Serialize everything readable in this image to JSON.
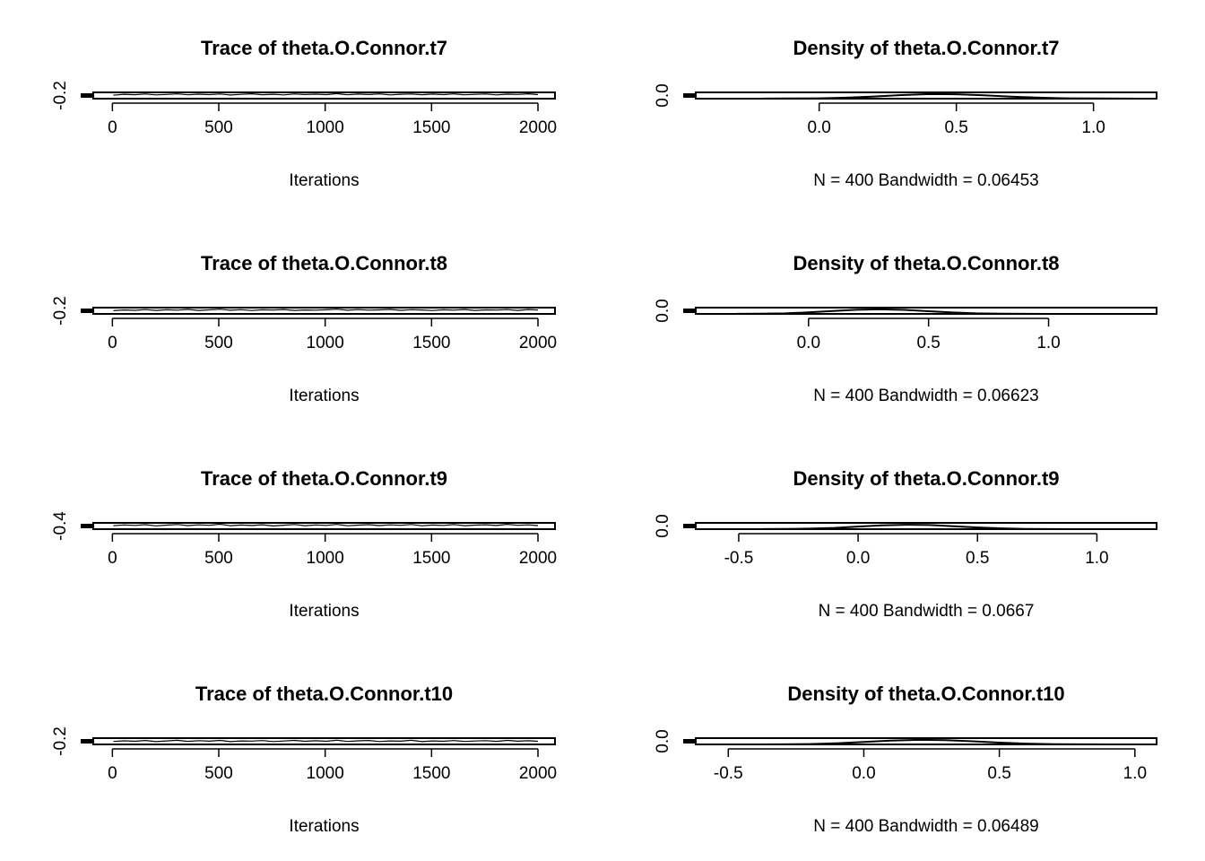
{
  "chart_data": [
    {
      "type": "line",
      "title": "Trace of theta.O.Connor.t7",
      "xlabel": "Iterations",
      "ylabel": "",
      "xlim": [
        -90,
        2080
      ],
      "ylim": [
        -0.6,
        1.0
      ],
      "x_ticks": [
        0,
        500,
        1000,
        1500,
        2000
      ],
      "x_tick_labels": [
        "0",
        "500",
        "1000",
        "1500",
        "2000"
      ],
      "y_ticks": [
        -0.2
      ],
      "y_tick_labels": [
        "-0.2"
      ],
      "series": [
        {
          "x": [
            5,
            55,
            105,
            155,
            205,
            255,
            305,
            355,
            405,
            455,
            505,
            555,
            605,
            655,
            705,
            755,
            805,
            855,
            905,
            955,
            1005,
            1055,
            1105,
            1155,
            1205,
            1255,
            1305,
            1355,
            1405,
            1455,
            1505,
            1555,
            1605,
            1655,
            1705,
            1755,
            1805,
            1855,
            1905,
            1955,
            2000
          ],
          "y": [
            0.3,
            0.52,
            0.41,
            0.6,
            0.35,
            0.48,
            0.62,
            0.38,
            0.55,
            0.44,
            0.58,
            0.33,
            0.5,
            0.64,
            0.4,
            0.53,
            0.37,
            0.6,
            0.46,
            0.55,
            0.42,
            0.68,
            0.39,
            0.57,
            0.45,
            0.61,
            0.36,
            0.52,
            0.6,
            0.4,
            0.56,
            0.43,
            0.62,
            0.38,
            0.5,
            0.59,
            0.35,
            0.54,
            0.47,
            0.63,
            0.42
          ]
        }
      ]
    },
    {
      "type": "line",
      "title": "Density of theta.O.Connor.t7",
      "xlabel": "N = 400   Bandwidth = 0.06453",
      "ylabel": "",
      "xlim": [
        -0.45,
        1.23
      ],
      "ylim": [
        0,
        2.2
      ],
      "x_ticks": [
        0.0,
        0.5,
        1.0
      ],
      "x_tick_labels": [
        "0.0",
        "0.5",
        "1.0"
      ],
      "y_ticks": [
        0.0
      ],
      "y_tick_labels": [
        "0.0"
      ],
      "series": [
        {
          "x": [
            -0.2,
            -0.1,
            0.0,
            0.1,
            0.2,
            0.3,
            0.4,
            0.5,
            0.6,
            0.7,
            0.8,
            0.9,
            1.0,
            1.1,
            1.2
          ],
          "y": [
            0.02,
            0.05,
            0.12,
            0.35,
            0.75,
            1.25,
            1.6,
            1.55,
            1.2,
            0.72,
            0.36,
            0.14,
            0.05,
            0.02,
            0.01
          ]
        }
      ]
    },
    {
      "type": "line",
      "title": "Trace of theta.O.Connor.t8",
      "xlabel": "Iterations",
      "ylabel": "",
      "xlim": [
        -90,
        2080
      ],
      "ylim": [
        -0.6,
        1.0
      ],
      "x_ticks": [
        0,
        500,
        1000,
        1500,
        2000
      ],
      "x_tick_labels": [
        "0",
        "500",
        "1000",
        "1500",
        "2000"
      ],
      "y_ticks": [
        -0.2
      ],
      "y_tick_labels": [
        "-0.2"
      ],
      "series": [
        {
          "x": [
            5,
            55,
            105,
            155,
            205,
            255,
            305,
            355,
            405,
            455,
            505,
            555,
            605,
            655,
            705,
            755,
            805,
            855,
            905,
            955,
            1005,
            1055,
            1105,
            1155,
            1205,
            1255,
            1305,
            1355,
            1405,
            1455,
            1505,
            1555,
            1605,
            1655,
            1705,
            1755,
            1805,
            1855,
            1905,
            1955,
            2000
          ],
          "y": [
            0.25,
            0.4,
            0.32,
            0.5,
            0.28,
            0.45,
            0.36,
            0.55,
            0.3,
            0.42,
            0.58,
            0.34,
            0.47,
            0.26,
            0.44,
            0.38,
            0.52,
            0.29,
            0.41,
            0.35,
            0.46,
            0.6,
            0.33,
            0.5,
            0.37,
            0.43,
            0.55,
            0.31,
            0.48,
            0.4,
            0.27,
            0.45,
            0.36,
            0.51,
            0.3,
            0.42,
            0.38,
            0.49,
            0.28,
            0.53,
            0.39
          ]
        }
      ]
    },
    {
      "type": "line",
      "title": "Density of theta.O.Connor.t8",
      "xlabel": "N = 400   Bandwidth = 0.06623",
      "ylabel": "",
      "xlim": [
        -0.47,
        1.45
      ],
      "ylim": [
        0,
        2.2
      ],
      "x_ticks": [
        0.0,
        0.5,
        1.0
      ],
      "x_tick_labels": [
        "0.0",
        "0.5",
        "1.0"
      ],
      "y_ticks": [
        0.0
      ],
      "y_tick_labels": [
        "0.0"
      ],
      "series": [
        {
          "x": [
            -0.3,
            -0.2,
            -0.1,
            0.0,
            0.1,
            0.2,
            0.3,
            0.4,
            0.5,
            0.6,
            0.7,
            0.8,
            0.9,
            1.0,
            1.1
          ],
          "y": [
            0.02,
            0.06,
            0.2,
            0.55,
            1.05,
            1.45,
            1.6,
            1.4,
            0.95,
            0.5,
            0.2,
            0.07,
            0.03,
            0.01,
            0.0
          ]
        }
      ]
    },
    {
      "type": "line",
      "title": "Trace of theta.O.Connor.t9",
      "xlabel": "Iterations",
      "ylabel": "",
      "xlim": [
        -90,
        2080
      ],
      "ylim": [
        -0.8,
        0.8
      ],
      "x_ticks": [
        0,
        500,
        1000,
        1500,
        2000
      ],
      "x_tick_labels": [
        "0",
        "500",
        "1000",
        "1500",
        "2000"
      ],
      "y_ticks": [
        -0.4
      ],
      "y_tick_labels": [
        "-0.4"
      ],
      "series": [
        {
          "x": [
            5,
            55,
            105,
            155,
            205,
            255,
            305,
            355,
            405,
            455,
            505,
            555,
            605,
            655,
            705,
            755,
            805,
            855,
            905,
            955,
            1005,
            1055,
            1105,
            1155,
            1205,
            1255,
            1305,
            1355,
            1405,
            1455,
            1505,
            1555,
            1605,
            1655,
            1705,
            1755,
            1805,
            1855,
            1905,
            1955,
            2000
          ],
          "y": [
            0.1,
            0.28,
            0.15,
            0.35,
            0.05,
            0.22,
            0.4,
            0.12,
            0.3,
            0.18,
            0.45,
            0.08,
            0.25,
            0.14,
            0.33,
            0.02,
            0.2,
            0.38,
            0.1,
            0.27,
            0.16,
            0.42,
            0.06,
            0.24,
            0.35,
            0.11,
            0.29,
            0.19,
            0.4,
            0.07,
            0.26,
            0.15,
            0.36,
            0.09,
            0.23,
            0.31,
            0.13,
            0.43,
            0.18,
            0.3,
            0.12
          ]
        }
      ]
    },
    {
      "type": "line",
      "title": "Density of theta.O.Connor.t9",
      "xlabel": "N = 400   Bandwidth = 0.0667",
      "ylabel": "",
      "xlim": [
        -0.68,
        1.25
      ],
      "ylim": [
        0,
        2.2
      ],
      "x_ticks": [
        -0.5,
        0.0,
        0.5,
        1.0
      ],
      "x_tick_labels": [
        "-0.5",
        "0.0",
        "0.5",
        "1.0"
      ],
      "y_ticks": [
        0.0
      ],
      "y_tick_labels": [
        "0.0"
      ],
      "series": [
        {
          "x": [
            -0.4,
            -0.3,
            -0.2,
            -0.1,
            0.0,
            0.1,
            0.2,
            0.3,
            0.4,
            0.5,
            0.6,
            0.7,
            0.8,
            0.9,
            1.0
          ],
          "y": [
            0.02,
            0.06,
            0.18,
            0.45,
            0.9,
            1.35,
            1.55,
            1.45,
            1.05,
            0.6,
            0.28,
            0.1,
            0.04,
            0.01,
            0.0
          ]
        }
      ]
    },
    {
      "type": "line",
      "title": "Trace of theta.O.Connor.t10",
      "xlabel": "Iterations",
      "ylabel": "",
      "xlim": [
        -90,
        2080
      ],
      "ylim": [
        -0.6,
        1.0
      ],
      "x_ticks": [
        0,
        500,
        1000,
        1500,
        2000
      ],
      "x_tick_labels": [
        "0",
        "500",
        "1000",
        "1500",
        "2000"
      ],
      "y_ticks": [
        -0.2
      ],
      "y_tick_labels": [
        "-0.2"
      ],
      "series": [
        {
          "x": [
            5,
            55,
            105,
            155,
            205,
            255,
            305,
            355,
            405,
            455,
            505,
            555,
            605,
            655,
            705,
            755,
            805,
            855,
            905,
            955,
            1005,
            1055,
            1105,
            1155,
            1205,
            1255,
            1305,
            1355,
            1405,
            1455,
            1505,
            1555,
            1605,
            1655,
            1705,
            1755,
            1805,
            1855,
            1905,
            1955,
            2000
          ],
          "y": [
            0.15,
            0.32,
            0.2,
            0.4,
            0.12,
            0.28,
            0.45,
            0.18,
            0.35,
            0.22,
            0.42,
            0.1,
            0.3,
            0.24,
            0.38,
            0.14,
            0.27,
            0.44,
            0.19,
            0.33,
            0.21,
            0.48,
            0.16,
            0.31,
            0.4,
            0.13,
            0.29,
            0.23,
            0.46,
            0.11,
            0.3,
            0.2,
            0.39,
            0.15,
            0.26,
            0.36,
            0.17,
            0.43,
            0.22,
            0.34,
            0.2
          ]
        }
      ]
    },
    {
      "type": "line",
      "title": "Density of theta.O.Connor.t10",
      "xlabel": "N = 400   Bandwidth = 0.06489",
      "ylabel": "",
      "xlim": [
        -0.62,
        1.08
      ],
      "ylim": [
        0,
        2.2
      ],
      "x_ticks": [
        -0.5,
        0.0,
        0.5,
        1.0
      ],
      "x_tick_labels": [
        "-0.5",
        "0.0",
        "0.5",
        "1.0"
      ],
      "y_ticks": [
        0.0
      ],
      "y_tick_labels": [
        "0.0"
      ],
      "series": [
        {
          "x": [
            -0.4,
            -0.3,
            -0.2,
            -0.1,
            0.0,
            0.1,
            0.2,
            0.3,
            0.4,
            0.5,
            0.6,
            0.7,
            0.8,
            0.9,
            1.0
          ],
          "y": [
            0.01,
            0.04,
            0.12,
            0.4,
            0.85,
            1.35,
            1.6,
            1.5,
            1.1,
            0.62,
            0.28,
            0.1,
            0.03,
            0.01,
            0.0
          ]
        }
      ]
    }
  ]
}
